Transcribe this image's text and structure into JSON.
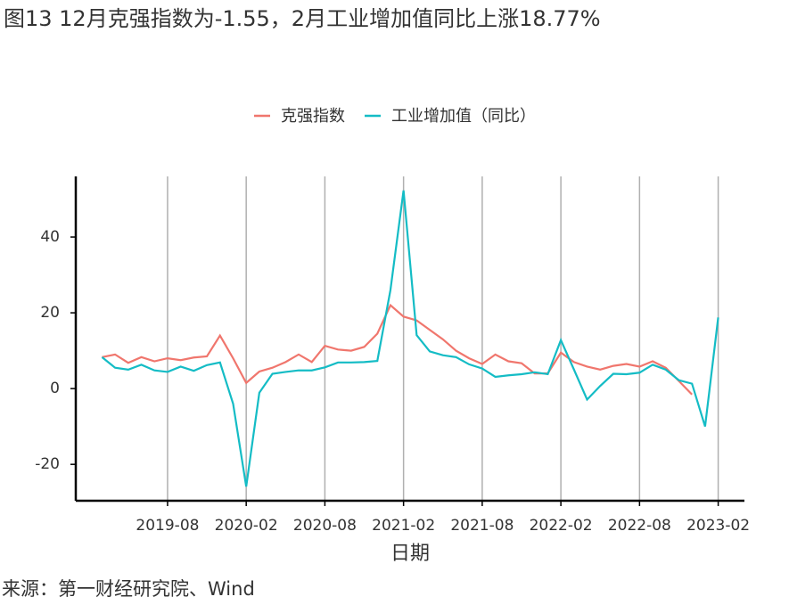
{
  "chart_data": {
    "type": "line",
    "title": "图13 12月克强指数为-1.55，2月工业增加值同比上涨18.77%",
    "x_label": "日期",
    "source": "来源：第一财经研究院、Wind",
    "x": [
      "2019-03",
      "2019-04",
      "2019-05",
      "2019-06",
      "2019-07",
      "2019-08",
      "2019-09",
      "2019-10",
      "2019-11",
      "2019-12",
      "2020-01",
      "2020-02",
      "2020-03",
      "2020-04",
      "2020-05",
      "2020-06",
      "2020-07",
      "2020-08",
      "2020-09",
      "2020-10",
      "2020-11",
      "2020-12",
      "2021-01",
      "2021-02",
      "2021-03",
      "2021-04",
      "2021-05",
      "2021-06",
      "2021-07",
      "2021-08",
      "2021-09",
      "2021-10",
      "2021-11",
      "2021-12",
      "2022-01",
      "2022-02",
      "2022-03",
      "2022-04",
      "2022-05",
      "2022-06",
      "2022-07",
      "2022-08",
      "2022-09",
      "2022-10",
      "2022-11",
      "2022-12",
      "2023-01",
      "2023-02"
    ],
    "series": [
      {
        "name": "克强指数",
        "color": "#f0766d",
        "values": [
          8.3,
          9,
          6.8,
          8.3,
          7.2,
          8,
          7.5,
          8.2,
          8.5,
          14,
          8,
          1.5,
          4.5,
          5.5,
          7,
          9,
          7,
          11.3,
          10.3,
          10,
          11,
          14.5,
          22,
          19,
          18,
          15.5,
          13,
          10,
          8,
          6.5,
          9,
          7.2,
          6.7,
          4,
          4,
          9.5,
          7,
          5.8,
          5,
          6,
          6.5,
          5.8,
          7.2,
          5.5,
          2,
          -1.55,
          null,
          null
        ]
      },
      {
        "name": "工业增加值（同比）",
        "color": "#14bcc5",
        "values": [
          8.3,
          5.5,
          5,
          6.3,
          4.8,
          4.4,
          5.8,
          4.7,
          6.2,
          6.9,
          -4,
          -25.87,
          -1.1,
          3.9,
          4.4,
          4.8,
          4.8,
          5.6,
          6.9,
          6.9,
          7,
          7.3,
          26,
          52.3,
          14.1,
          9.8,
          8.8,
          8.3,
          6.4,
          5.3,
          3.1,
          3.5,
          3.8,
          4.3,
          3.8,
          12.8,
          5,
          -2.9,
          0.7,
          3.9,
          3.8,
          4.2,
          6.3,
          5,
          2.2,
          1.3,
          -10,
          18.77
        ]
      }
    ],
    "xlim": [
      "2019-01",
      "2023-04"
    ],
    "xticks": [
      "2019-08",
      "2020-02",
      "2020-08",
      "2021-02",
      "2021-08",
      "2022-02",
      "2022-08",
      "2023-02"
    ],
    "ylim": [
      -29.6,
      56
    ],
    "yticks": [
      -20,
      0,
      20,
      40
    ],
    "grid": "x"
  }
}
